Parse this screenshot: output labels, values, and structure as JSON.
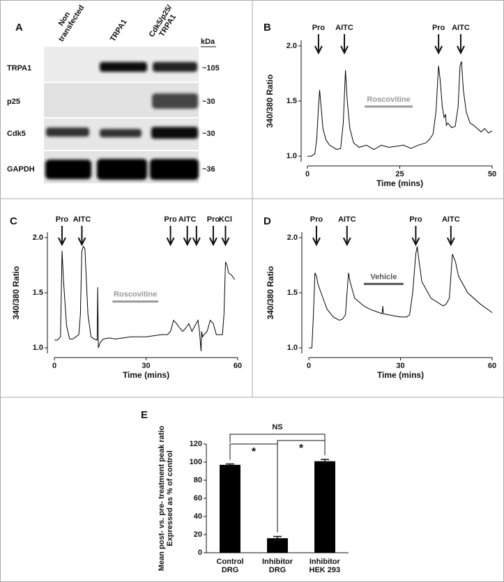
{
  "blot": {
    "label": "A",
    "unit": "kDa",
    "lanes": [
      "Non\ntransfected",
      "TRPA1",
      "Cdk5/p25/\nTRPA1"
    ],
    "rows": [
      {
        "name": "TRPA1",
        "size": "~105"
      },
      {
        "name": "p25",
        "size": "~30"
      },
      {
        "name": "Cdk5",
        "size": "~30"
      },
      {
        "name": "GAPDH",
        "size": "~36"
      }
    ]
  },
  "chart_data": [
    {
      "type": "line",
      "label": "B",
      "xlabel": "Time (mins)",
      "ylabel": "340/380 Ratio",
      "color": "#000000",
      "x": [
        0,
        1,
        2,
        2.5,
        3,
        3.3,
        3.7,
        4.2,
        5,
        6,
        7,
        8,
        9,
        9.7,
        10.3,
        10.8,
        11.5,
        12.5,
        14,
        16,
        18,
        20,
        22,
        24,
        26,
        28,
        30,
        32,
        33,
        34,
        34.8,
        35.5,
        35.9,
        36.5,
        37,
        37.4,
        37.6,
        38,
        39,
        40,
        40.8,
        41.3,
        41.7,
        42.2,
        43,
        44,
        45,
        46,
        47,
        48,
        49,
        50
      ],
      "values": [
        1.0,
        1.0,
        1.02,
        1.15,
        1.45,
        1.6,
        1.45,
        1.25,
        1.15,
        1.1,
        1.08,
        1.06,
        1.07,
        1.3,
        1.78,
        1.5,
        1.25,
        1.12,
        1.08,
        1.1,
        1.06,
        1.1,
        1.08,
        1.09,
        1.1,
        1.07,
        1.1,
        1.12,
        1.15,
        1.2,
        1.4,
        1.82,
        1.7,
        1.45,
        1.35,
        1.38,
        1.28,
        1.3,
        1.26,
        1.27,
        1.45,
        1.82,
        1.86,
        1.6,
        1.4,
        1.3,
        1.28,
        1.25,
        1.22,
        1.25,
        1.21,
        1.23
      ],
      "xlim": [
        0,
        50
      ],
      "xticks": [
        0,
        25,
        50
      ],
      "ylim": [
        0.95,
        2.05
      ],
      "yticks": [
        {
          "value": 1,
          "label": "1.0"
        },
        1.5,
        {
          "value": 2,
          "label": "2.0"
        }
      ],
      "annotations": [
        {
          "text": "Pro",
          "x": 3
        },
        {
          "text": "AITC",
          "x": 10
        },
        {
          "text": "Pro",
          "x": 35.5
        },
        {
          "text": "AITC",
          "x": 41.5
        }
      ],
      "treatment": {
        "text": "Roscovitine",
        "x": [
          15.5,
          28.5
        ],
        "y": 1.45,
        "color": "#999999"
      }
    },
    {
      "type": "line",
      "label": "C",
      "xlabel": "Time (mins)",
      "ylabel": "340/380 Ratio",
      "color": "#000000",
      "x": [
        0,
        1,
        2,
        2.5,
        3,
        4,
        5,
        6,
        7,
        8,
        8.5,
        9,
        9.5,
        10,
        10.5,
        11,
        12,
        13,
        14,
        14.2,
        14.4,
        15,
        16,
        18,
        20,
        25,
        30,
        35,
        37,
        38,
        39,
        40,
        41,
        42,
        43,
        44,
        45,
        46,
        47,
        47.5,
        48,
        48.2,
        48.5,
        49,
        50,
        51,
        52,
        53,
        54,
        55,
        55.5,
        56,
        56.5,
        57,
        58,
        59
      ],
      "values": [
        1.07,
        1.07,
        1.1,
        1.88,
        1.6,
        1.2,
        1.08,
        1.08,
        1.1,
        1.12,
        1.3,
        1.88,
        1.92,
        1.9,
        1.6,
        1.3,
        1.1,
        1.08,
        1.07,
        1.55,
        1.0,
        1.05,
        1.08,
        1.09,
        1.08,
        1.1,
        1.1,
        1.12,
        1.12,
        1.15,
        1.25,
        1.22,
        1.18,
        1.15,
        1.18,
        1.22,
        1.15,
        1.2,
        1.25,
        1.15,
        0.97,
        1.15,
        1.1,
        1.12,
        1.15,
        1.25,
        1.22,
        1.12,
        1.12,
        1.12,
        1.3,
        1.78,
        1.75,
        1.68,
        1.66,
        1.62
      ],
      "xlim": [
        0,
        60
      ],
      "xticks": [
        0,
        30,
        60
      ],
      "ylim": [
        0.95,
        2.05
      ],
      "yticks": [
        {
          "value": 1,
          "label": "1.0"
        },
        1.5,
        {
          "value": 2,
          "label": "2.0"
        }
      ],
      "annotations": [
        {
          "text": "Pro",
          "x": 2.5
        },
        {
          "text": "AITC",
          "x": 9
        },
        {
          "text": "Pro",
          "x": 38
        },
        {
          "text": "AITC",
          "x": 43.5
        },
        {
          "x": 46.5
        },
        {
          "text": "Pro",
          "x": 52
        },
        {
          "text": "KCl",
          "x": 56
        }
      ],
      "treatment": {
        "text": "Roscovitine",
        "x": [
          19,
          34
        ],
        "y": 1.42,
        "color": "#999999"
      }
    },
    {
      "type": "line",
      "label": "D",
      "xlabel": "Time (mins)",
      "ylabel": "340/380 Ratio",
      "color": "#000000",
      "x": [
        0,
        1,
        1.5,
        2,
        2.5,
        3,
        4,
        6,
        8,
        10,
        11,
        12,
        12.5,
        13,
        13.5,
        15,
        18,
        20,
        22,
        24,
        24.2,
        24.4,
        26,
        28,
        30,
        32,
        33,
        34,
        35,
        35.5,
        36,
        37,
        40,
        44,
        45,
        46,
        47,
        48,
        49,
        52,
        56,
        60
      ],
      "values": [
        1.0,
        1.0,
        1.3,
        1.68,
        1.65,
        1.58,
        1.5,
        1.35,
        1.28,
        1.25,
        1.26,
        1.3,
        1.5,
        1.68,
        1.6,
        1.45,
        1.38,
        1.35,
        1.33,
        1.31,
        1.38,
        1.31,
        1.3,
        1.29,
        1.28,
        1.28,
        1.3,
        1.5,
        1.85,
        1.92,
        1.8,
        1.6,
        1.45,
        1.38,
        1.4,
        1.45,
        1.85,
        1.78,
        1.65,
        1.5,
        1.4,
        1.32
      ],
      "xlim": [
        0,
        60
      ],
      "xticks": [
        0,
        30,
        60
      ],
      "ylim": [
        0.95,
        2.05
      ],
      "yticks": [
        {
          "value": 1,
          "label": "1.0"
        },
        1.5,
        {
          "value": 2,
          "label": "2.0"
        }
      ],
      "annotations": [
        {
          "text": "Pro",
          "x": 2.5
        },
        {
          "text": "AITC",
          "x": 12.5
        },
        {
          "text": "Pro",
          "x": 35
        },
        {
          "text": "AITC",
          "x": 46.5
        }
      ],
      "treatment": {
        "text": "Vehicle",
        "x": [
          18,
          31
        ],
        "y": 1.58,
        "color": "#555555"
      }
    },
    {
      "type": "bar",
      "label": "E",
      "ylabel": "Mean post- vs. pre- treatment peak ratio\nExpressed as % of control",
      "color": "#000000",
      "categories": [
        "Control\nDRG",
        "Inhibitor\nDRG",
        "Inhibitor\nHEK 293"
      ],
      "values": [
        97,
        16,
        101
      ],
      "errors": [
        1,
        2,
        2
      ],
      "ylim": [
        0,
        120
      ],
      "yticks": [
        0,
        20,
        40,
        60,
        80,
        100,
        120
      ],
      "significance": [
        {
          "between": [
            0,
            2
          ],
          "text": "NS"
        },
        {
          "between": [
            0,
            1
          ],
          "text": "*"
        },
        {
          "between": [
            1,
            2
          ],
          "text": "*"
        }
      ]
    }
  ]
}
